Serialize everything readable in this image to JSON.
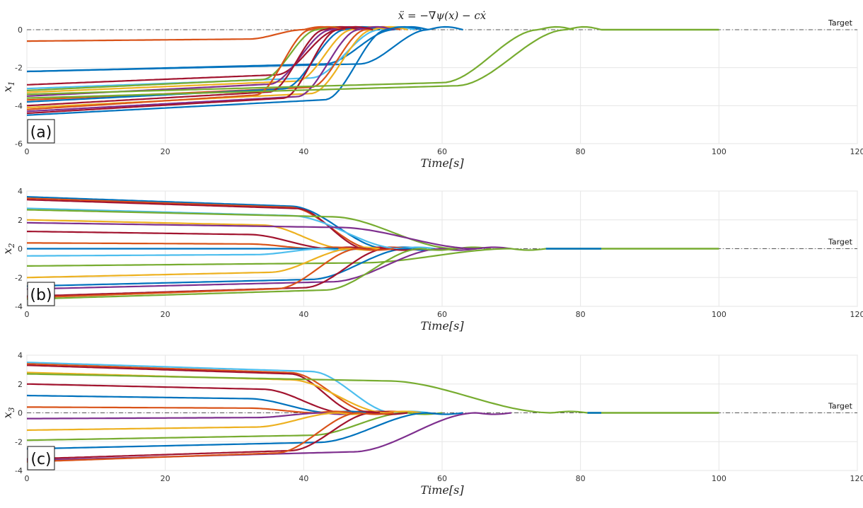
{
  "chart_data": {
    "type": "line",
    "title": "ẍ = −∇ψ(x) − cẋ",
    "target_label": "Target",
    "xlabel": "Time[s]",
    "xlim": [
      0,
      120
    ],
    "xticks": [
      "0",
      "20",
      "40",
      "60",
      "80",
      "100",
      "120"
    ],
    "colors": [
      "#0072BD",
      "#D95319",
      "#EDB120",
      "#7E2F8E",
      "#77AC30",
      "#4DBEEE",
      "#A2142F"
    ],
    "panels": [
      {
        "tag": "(a)",
        "ylabel": "x",
        "ylabel_sub": "1",
        "ylim": [
          -6,
          0
        ],
        "yticks": [
          "0",
          "-2",
          "-4",
          "-6"
        ],
        "target_value": 0,
        "converged_until": 100,
        "series": [
          {
            "x0": -0.6,
            "conv": 40,
            "width": 8,
            "color": 1
          },
          {
            "x0": -2.2,
            "conv": 53,
            "width": 10,
            "color": 0
          },
          {
            "x0": -2.2,
            "conv": 58,
            "width": 10,
            "color": 0
          },
          {
            "x0": -2.9,
            "conv": 45,
            "width": 9,
            "color": 6
          },
          {
            "x0": -3.1,
            "conv": 51,
            "width": 10,
            "color": 5
          },
          {
            "x0": -3.2,
            "conv": 42,
            "width": 8,
            "color": 4
          },
          {
            "x0": -3.3,
            "conv": 47,
            "width": 8,
            "color": 2
          },
          {
            "x0": -3.5,
            "conv": 44,
            "width": 9,
            "color": 3
          },
          {
            "x0": -3.7,
            "conv": 49,
            "width": 8,
            "color": 1
          },
          {
            "x0": -3.8,
            "conv": 46,
            "width": 9,
            "color": 0
          },
          {
            "x0": -4.0,
            "conv": 43,
            "width": 8,
            "color": 6
          },
          {
            "x0": -4.1,
            "conv": 50,
            "width": 9,
            "color": 2
          },
          {
            "x0": -4.2,
            "conv": 41,
            "width": 8,
            "color": 1
          },
          {
            "x0": -4.3,
            "conv": 48,
            "width": 9,
            "color": 3
          },
          {
            "x0": -4.4,
            "conv": 45,
            "width": 8,
            "color": 6
          },
          {
            "x0": -4.5,
            "conv": 52,
            "width": 9,
            "color": 0
          },
          {
            "x0": -3.4,
            "conv": 74,
            "width": 14,
            "color": 4
          },
          {
            "x0": -3.6,
            "conv": 78,
            "width": 16,
            "color": 4
          }
        ]
      },
      {
        "tag": "(b)",
        "ylabel": "x",
        "ylabel_sub": "2",
        "ylim": [
          -4,
          4
        ],
        "yticks": [
          "4",
          "2",
          "0",
          "-2",
          "-4"
        ],
        "target_value": 0,
        "converged_until": 100,
        "series": [
          {
            "x0": 3.6,
            "conv": 52,
            "width": 14,
            "color": 0
          },
          {
            "x0": 3.5,
            "conv": 50,
            "width": 12,
            "color": 1
          },
          {
            "x0": 3.4,
            "conv": 49,
            "width": 10,
            "color": 6
          },
          {
            "x0": 2.8,
            "conv": 54,
            "width": 16,
            "color": 5
          },
          {
            "x0": 2.7,
            "conv": 62,
            "width": 18,
            "color": 4
          },
          {
            "x0": 2.0,
            "conv": 46,
            "width": 12,
            "color": 2
          },
          {
            "x0": 1.8,
            "conv": 65,
            "width": 20,
            "color": 3
          },
          {
            "x0": 1.2,
            "conv": 44,
            "width": 12,
            "color": 6
          },
          {
            "x0": 0.4,
            "conv": 42,
            "width": 10,
            "color": 1
          },
          {
            "x0": 0.0,
            "conv": 40,
            "width": 10,
            "color": 0
          },
          {
            "x0": -0.5,
            "conv": 43,
            "width": 10,
            "color": 5
          },
          {
            "x0": -1.2,
            "conv": 70,
            "width": 22,
            "color": 4
          },
          {
            "x0": -2.0,
            "conv": 47,
            "width": 12,
            "color": 2
          },
          {
            "x0": -2.6,
            "conv": 55,
            "width": 14,
            "color": 0
          },
          {
            "x0": -2.8,
            "conv": 60,
            "width": 16,
            "color": 3
          },
          {
            "x0": -3.3,
            "conv": 52,
            "width": 12,
            "color": 6
          },
          {
            "x0": -3.4,
            "conv": 48,
            "width": 12,
            "color": 1
          },
          {
            "x0": -3.5,
            "conv": 57,
            "width": 14,
            "color": 4
          }
        ]
      },
      {
        "tag": "(c)",
        "ylabel": "x",
        "ylabel_sub": "3",
        "ylim": [
          -4,
          4
        ],
        "yticks": [
          "4",
          "2",
          "0",
          "-2",
          "-4"
        ],
        "target_value": 0,
        "converged_until": 100,
        "series": [
          {
            "x0": 3.5,
            "conv": 53,
            "width": 12,
            "color": 5
          },
          {
            "x0": 3.4,
            "conv": 50,
            "width": 12,
            "color": 1
          },
          {
            "x0": 3.3,
            "conv": 48,
            "width": 10,
            "color": 6
          },
          {
            "x0": 2.8,
            "conv": 52,
            "width": 14,
            "color": 2
          },
          {
            "x0": 2.7,
            "conv": 76,
            "width": 24,
            "color": 4
          },
          {
            "x0": 2.0,
            "conv": 46,
            "width": 12,
            "color": 6
          },
          {
            "x0": 1.2,
            "conv": 44,
            "width": 12,
            "color": 0
          },
          {
            "x0": 0.4,
            "conv": 42,
            "width": 10,
            "color": 1
          },
          {
            "x0": -0.4,
            "conv": 43,
            "width": 10,
            "color": 3
          },
          {
            "x0": -1.2,
            "conv": 45,
            "width": 12,
            "color": 2
          },
          {
            "x0": -1.9,
            "conv": 55,
            "width": 14,
            "color": 4
          },
          {
            "x0": -2.5,
            "conv": 58,
            "width": 16,
            "color": 0
          },
          {
            "x0": -3.2,
            "conv": 50,
            "width": 12,
            "color": 6
          },
          {
            "x0": -3.3,
            "conv": 65,
            "width": 18,
            "color": 3
          },
          {
            "x0": -3.4,
            "conv": 48,
            "width": 12,
            "color": 1
          }
        ]
      }
    ]
  }
}
